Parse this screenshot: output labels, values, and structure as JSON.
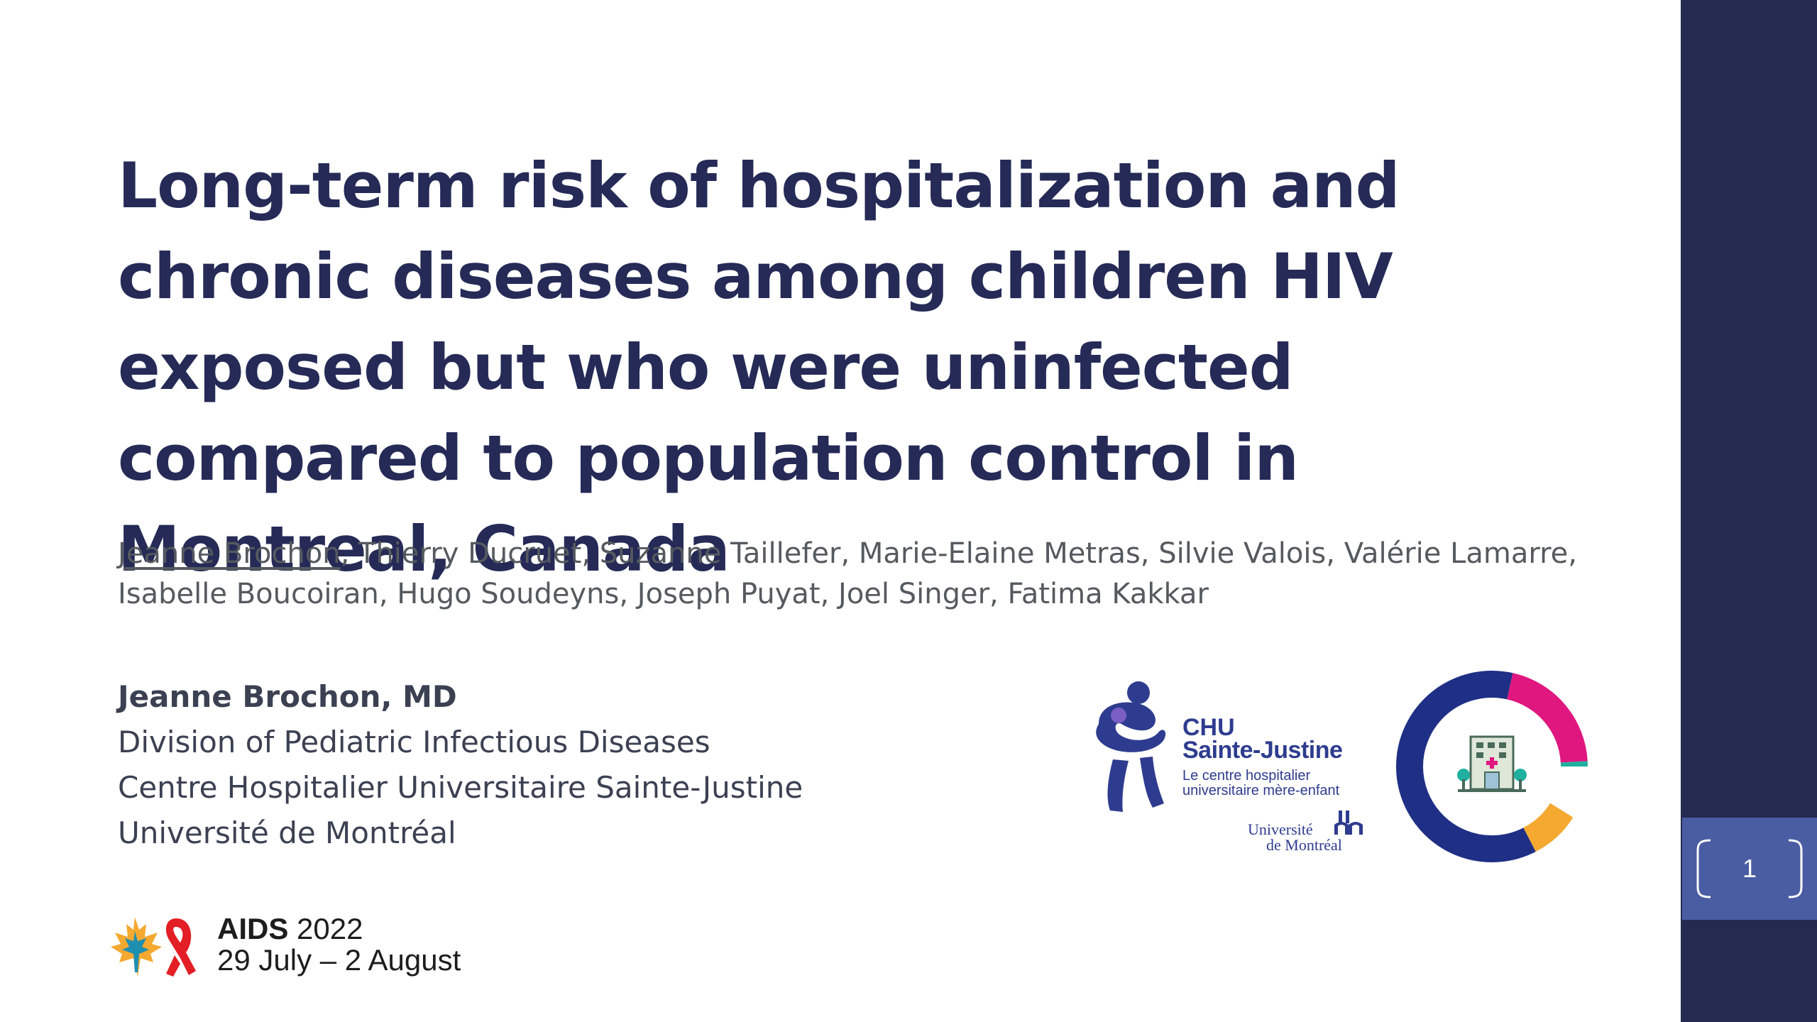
{
  "slide": {
    "title": "Long-term risk of hospitalization and chronic diseases among children HIV exposed but who were uninfected compared to population control in Montreal, Canada",
    "authors": {
      "first_author": "Jeanne Brochon",
      "rest_line1": ", Thierry Ducruet, Suzanne Taillefer, Marie-Elaine Metras, Silvie Valois, Valérie Lamarre,",
      "rest_line2": "Isabelle Boucoiran, Hugo Soudeyns, Joseph Puyat, Joel Singer, Fatima Kakkar"
    },
    "presenter": {
      "name": "Jeanne Brochon, MD",
      "line1": "Division of Pediatric Infectious Diseases",
      "line2": "Centre Hospitalier Universitaire Sainte-Justine",
      "line3": "Université de Montréal"
    },
    "logo_chu": {
      "name1": "CHU",
      "name2": "Sainte-Justine",
      "tag1": "Le centre hospitalier",
      "tag2": "universitaire mère-enfant",
      "udem1": "Université",
      "udem2": "de Montréal"
    },
    "conference": {
      "name": "AIDS",
      "year": "2022",
      "dates": "29 July – 2 August"
    },
    "page_number": "1",
    "colors": {
      "title": "#252a56",
      "sidebar": "#252a4f",
      "page_box": "#4a5ca2",
      "donut_navy": "#1f2f85",
      "donut_magenta": "#e0177f",
      "donut_teal": "#1fb0a0",
      "donut_orange": "#f5a930"
    }
  }
}
